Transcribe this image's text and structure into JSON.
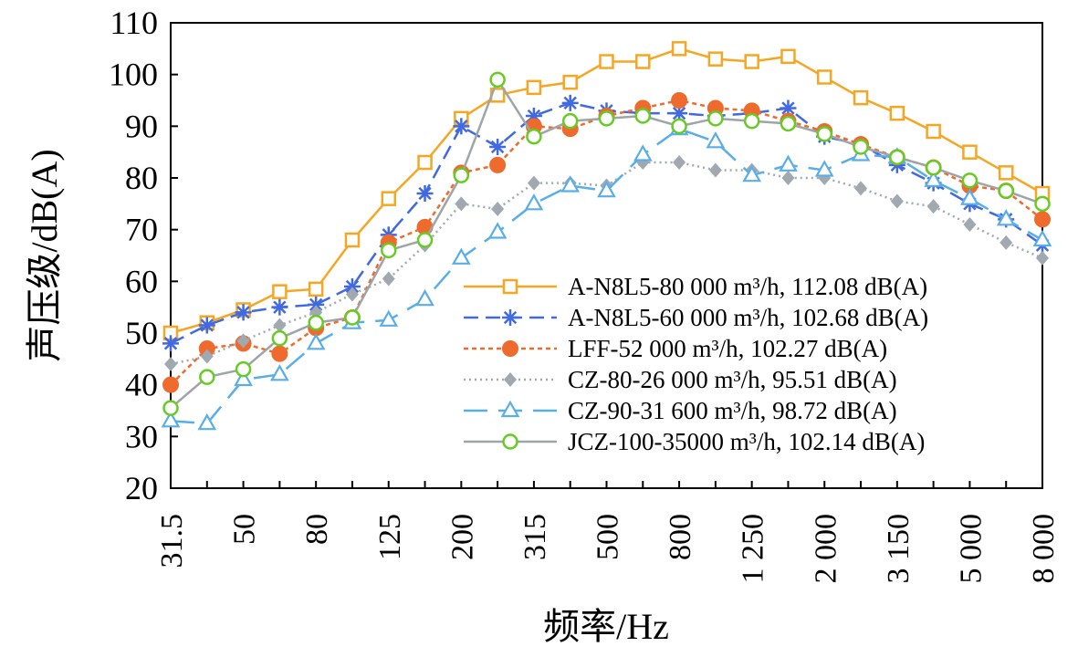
{
  "chart_data": {
    "type": "line",
    "title": "",
    "xlabel": "频率/Hz",
    "ylabel": "声压级/dB(A)",
    "ylim": [
      20,
      110
    ],
    "yticks": [
      20,
      30,
      40,
      50,
      60,
      70,
      80,
      90,
      100,
      110
    ],
    "grid": false,
    "legend_position": "bottom-right",
    "categories": [
      "31.5",
      "40",
      "50",
      "63",
      "80",
      "100",
      "125",
      "160",
      "200",
      "250",
      "315",
      "400",
      "500",
      "630",
      "800",
      "1 000",
      "1 250",
      "1 600",
      "2 000",
      "2 500",
      "3 150",
      "4 000",
      "5 000",
      "6 300",
      "8 000"
    ],
    "tick_labels": [
      "31.5",
      "50",
      "80",
      "125",
      "200",
      "315",
      "500",
      "800",
      "1 250",
      "2 000",
      "3 150",
      "5 000",
      "8 000"
    ],
    "tick_label_indices": [
      0,
      2,
      4,
      6,
      8,
      10,
      12,
      14,
      16,
      18,
      20,
      22,
      24
    ],
    "series": [
      {
        "name": "A-N8L5-80 000 m³/h, 112.08 dB(A)",
        "color": "#f5a623",
        "marker": "square-open",
        "dash": "solid",
        "values": [
          50,
          52,
          54.5,
          58,
          58.5,
          68,
          76,
          83,
          91.5,
          96,
          97.5,
          98.5,
          102.5,
          102.5,
          105,
          103,
          102.5,
          103.5,
          99.5,
          95.5,
          92.5,
          89,
          85,
          81,
          77
        ]
      },
      {
        "name": "A-N8L5-60 000 m³/h, 102.68 dB(A)",
        "color": "#4169e1",
        "marker": "asterisk",
        "dash": "dash",
        "values": [
          48,
          51.5,
          54,
          55,
          55.5,
          59,
          69,
          77,
          90,
          86,
          92,
          94.5,
          93,
          92.5,
          92.5,
          92,
          92.5,
          93.5,
          88,
          86.5,
          82.5,
          79,
          75,
          72,
          67
        ]
      },
      {
        "name": "LFF-52 000 m³/h, 102.27 dB(A)",
        "color": "#ee6a2d",
        "marker": "circle-filled",
        "dash": "dot",
        "values": [
          40,
          47,
          48,
          46,
          51,
          53,
          67.5,
          70.5,
          81,
          82.5,
          90,
          89.5,
          92,
          93.5,
          95,
          93.5,
          93,
          91,
          89,
          86.5,
          84,
          82,
          78.5,
          77.5,
          72
        ]
      },
      {
        "name": "CZ-80-26 000 m³/h, 95.51 dB(A)",
        "color": "#a0a8b0",
        "marker": "diamond-filled",
        "dash": "fine-dot",
        "values": [
          44,
          45.5,
          48.5,
          51.5,
          54,
          57.5,
          60.5,
          67,
          75,
          74,
          79,
          79,
          78.5,
          83,
          83,
          81.5,
          81.5,
          80,
          80,
          78,
          75.5,
          74.5,
          71,
          67.5,
          64.5
        ]
      },
      {
        "name": "CZ-90-31 600 m³/h, 98.72 dB(A)",
        "color": "#5aaee8",
        "marker": "triangle-open",
        "dash": "long-dash",
        "values": [
          33,
          32.5,
          41,
          42,
          48,
          52,
          52.5,
          56.5,
          64.5,
          69.5,
          75,
          78.5,
          77.5,
          84.5,
          89.5,
          87,
          80.5,
          82.5,
          81.5,
          84.5,
          84,
          79.5,
          76,
          72,
          68
        ]
      },
      {
        "name": "JCZ-100-35000 m³/h, 102.14 dB(A)",
        "color": "#9ea4a8",
        "marker": "circle-open",
        "marker_color": "#66cc22",
        "dash": "solid",
        "values": [
          35.5,
          41.5,
          43,
          49,
          52,
          53,
          66,
          68,
          80.5,
          99,
          88,
          91,
          91.5,
          92,
          90,
          91.5,
          91,
          90.5,
          88.5,
          86,
          84,
          82,
          79.5,
          77.5,
          75
        ]
      }
    ]
  }
}
